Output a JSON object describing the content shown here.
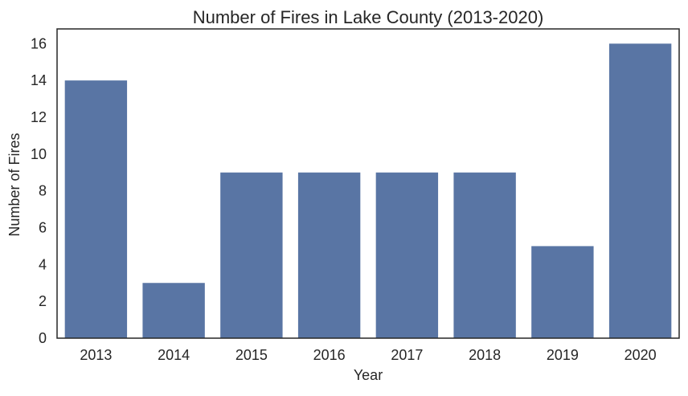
{
  "chart_data": {
    "type": "bar",
    "title": "Number of Fires in Lake County (2013-2020)",
    "xlabel": "Year",
    "ylabel": "Number of Fires",
    "categories": [
      "2013",
      "2014",
      "2015",
      "2016",
      "2017",
      "2018",
      "2019",
      "2020"
    ],
    "values": [
      14,
      3,
      9,
      9,
      9,
      9,
      5,
      16
    ],
    "ylim": [
      0,
      16.8
    ],
    "yticks": [
      0,
      2,
      4,
      6,
      8,
      10,
      12,
      14,
      16
    ],
    "grid": false,
    "bar_color": "#5975a4",
    "frame_color": "#262626"
  }
}
